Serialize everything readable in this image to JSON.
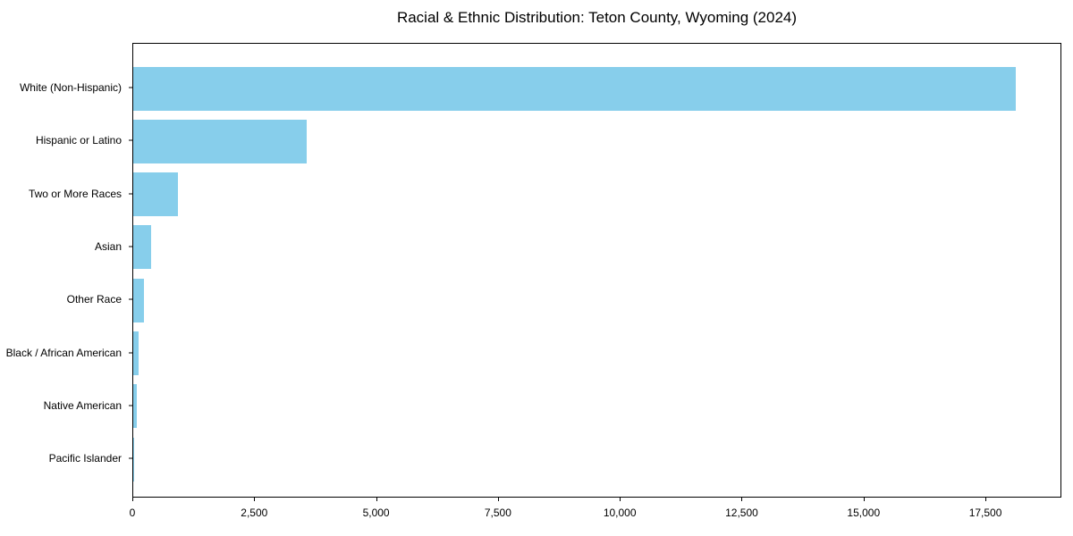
{
  "chart_data": {
    "type": "bar",
    "orientation": "horizontal",
    "title": "Racial & Ethnic Distribution: Teton County, Wyoming (2024)",
    "categories": [
      "White (Non-Hispanic)",
      "Hispanic or Latino",
      "Two or More Races",
      "Asian",
      "Other Race",
      "Black / African American",
      "Native American",
      "Pacific Islander"
    ],
    "values": [
      18100,
      3560,
      920,
      360,
      225,
      105,
      70,
      10
    ],
    "xlabel": "",
    "ylabel": "",
    "xlim": [
      0,
      19058
    ],
    "x_ticks": [
      0,
      2500,
      5000,
      7500,
      10000,
      12500,
      15000,
      17500
    ],
    "x_tick_labels": [
      "0",
      "2,500",
      "5,000",
      "7,500",
      "10,000",
      "12,500",
      "15,000",
      "17,500"
    ],
    "grid": false,
    "legend": "none",
    "bar_color": "#87CEEB",
    "spine_color": "#000000",
    "text_color": "#000000",
    "background_color": "#ffffff"
  }
}
